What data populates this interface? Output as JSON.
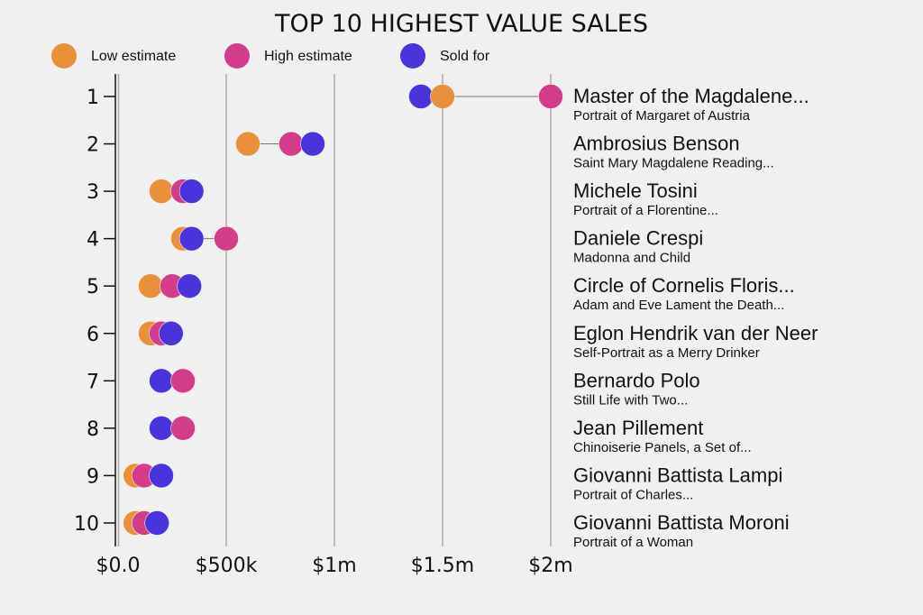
{
  "chart_data": {
    "type": "dot",
    "title": "TOP 10 HIGHEST VALUE SALES",
    "legend": [
      {
        "name": "Low estimate",
        "key": "low",
        "color": "#E8913A"
      },
      {
        "name": "High estimate",
        "key": "high",
        "color": "#D43C8A"
      },
      {
        "name": "Sold for",
        "key": "sold",
        "color": "#4833DC"
      }
    ],
    "legend_position": "top-left",
    "xlim": [
      0,
      2000000
    ],
    "xticks": [
      {
        "value": 0,
        "label": "$0.0"
      },
      {
        "value": 500000,
        "label": "$500k"
      },
      {
        "value": 1000000,
        "label": "$1m"
      },
      {
        "value": 1500000,
        "label": "$1.5m"
      },
      {
        "value": 2000000,
        "label": "$2m"
      }
    ],
    "grid": true,
    "rows": [
      {
        "rank": "1",
        "artist": "Master of the Magdalene...",
        "work": "Portrait of Margaret of Austria",
        "low": 1500000,
        "high": 2000000,
        "sold": 1400000
      },
      {
        "rank": "2",
        "artist": "Ambrosius Benson",
        "work": "Saint Mary Magdalene Reading...",
        "low": 600000,
        "high": 800000,
        "sold": 900000
      },
      {
        "rank": "3",
        "artist": "Michele Tosini",
        "work": "Portrait of a Florentine...",
        "low": 200000,
        "high": 300000,
        "sold": 340000
      },
      {
        "rank": "4",
        "artist": "Daniele Crespi",
        "work": "Madonna and Child",
        "low": 300000,
        "high": 500000,
        "sold": 340000
      },
      {
        "rank": "5",
        "artist": "Circle of Cornelis Floris...",
        "work": "Adam and Eve Lament the Death...",
        "low": 150000,
        "high": 250000,
        "sold": 330000
      },
      {
        "rank": "6",
        "artist": "Eglon Hendrik van der Neer",
        "work": "Self-Portrait as a Merry Drinker",
        "low": 150000,
        "high": 200000,
        "sold": 245000
      },
      {
        "rank": "7",
        "artist": "Bernardo Polo",
        "work": "Still Life with Two...",
        "low": 200000,
        "high": 300000,
        "sold": 200000
      },
      {
        "rank": "8",
        "artist": "Jean Pillement",
        "work": "Chinoiserie Panels, a Set of...",
        "low": 200000,
        "high": 300000,
        "sold": 200000
      },
      {
        "rank": "9",
        "artist": "Giovanni Battista Lampi",
        "work": "Portrait of Charles...",
        "low": 80000,
        "high": 120000,
        "sold": 200000
      },
      {
        "rank": "10",
        "artist": "Giovanni Battista Moroni",
        "work": "Portrait of a Woman",
        "low": 80000,
        "high": 120000,
        "sold": 180000
      }
    ]
  }
}
